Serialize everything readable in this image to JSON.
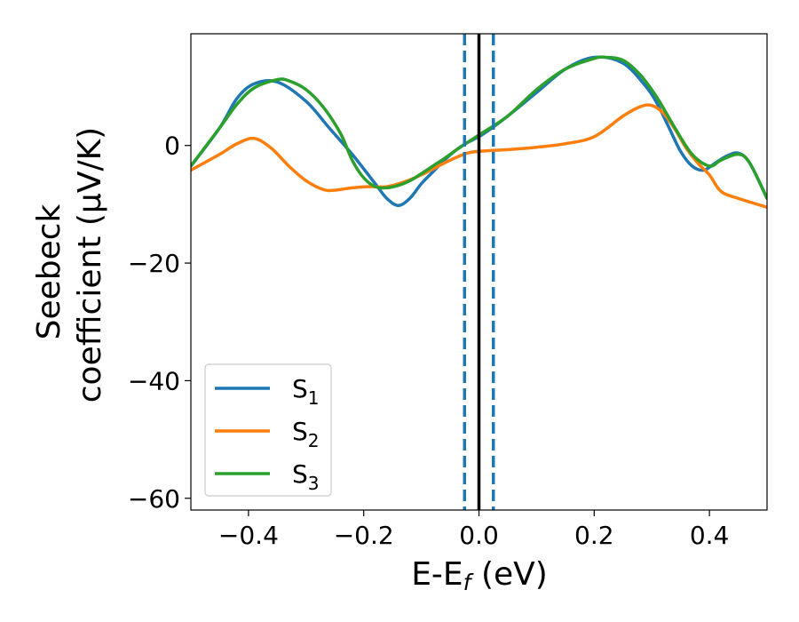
{
  "chart_data": {
    "type": "line",
    "title": "",
    "xlabel": "E-E",
    "xlabel_sub": "f",
    "xlabel_unit": "(eV)",
    "ylabel_line1": "Seebeck",
    "ylabel_line2": "coefficient",
    "ylabel_unit": "(μV/K)",
    "xlim": [
      -0.5,
      0.5
    ],
    "ylim": [
      -62,
      19
    ],
    "xticks": [
      -0.4,
      -0.2,
      0.0,
      0.2,
      0.4
    ],
    "xtick_labels": [
      "−0.4",
      "−0.2",
      "0.0",
      "0.2",
      "0.4"
    ],
    "yticks": [
      0,
      -20,
      -40,
      -60
    ],
    "ytick_labels": [
      "0",
      "−20",
      "−40",
      "−60"
    ],
    "grid": false,
    "legend_position": "bottom-left",
    "series": [
      {
        "name": "S",
        "sub": "1",
        "color": "#1f77b4",
        "x": [
          -0.5,
          -0.45,
          -0.42,
          -0.39,
          -0.35,
          -0.3,
          -0.26,
          -0.22,
          -0.18,
          -0.16,
          -0.14,
          -0.12,
          -0.1,
          -0.08,
          -0.06,
          -0.04,
          -0.02,
          0.0,
          0.02,
          0.05,
          0.1,
          0.15,
          0.2,
          0.25,
          0.29,
          0.31,
          0.33,
          0.35,
          0.37,
          0.39,
          0.41,
          0.43,
          0.45,
          0.47,
          0.5
        ],
        "values": [
          -3.5,
          3,
          8,
          10.5,
          10.8,
          7.5,
          3,
          -1.5,
          -6.5,
          -9,
          -10.2,
          -9,
          -6.5,
          -4.5,
          -2.5,
          -0.8,
          0.5,
          1.5,
          2.8,
          5,
          9,
          13,
          15,
          14,
          10,
          7,
          3,
          -1,
          -3.5,
          -4.2,
          -3,
          -1.8,
          -1.3,
          -3,
          -9
        ]
      },
      {
        "name": "S",
        "sub": "2",
        "color": "#ff7f0e",
        "x": [
          -0.5,
          -0.45,
          -0.42,
          -0.39,
          -0.36,
          -0.33,
          -0.3,
          -0.27,
          -0.25,
          -0.22,
          -0.19,
          -0.16,
          -0.13,
          -0.1,
          -0.08,
          -0.05,
          -0.02,
          0.0,
          0.05,
          0.1,
          0.15,
          0.2,
          0.25,
          0.28,
          0.3,
          0.32,
          0.34,
          0.36,
          0.38,
          0.4,
          0.42,
          0.45,
          0.5
        ],
        "values": [
          -4.2,
          -1.5,
          0.3,
          1.2,
          -0.5,
          -3.5,
          -6,
          -7.5,
          -7.6,
          -7.2,
          -7.0,
          -7.0,
          -6.2,
          -5,
          -4,
          -2.5,
          -1.3,
          -1,
          -0.7,
          -0.3,
          0.3,
          1.5,
          5,
          6.6,
          6.8,
          5.5,
          2.8,
          -0.5,
          -3,
          -5,
          -7.8,
          -9,
          -10.5
        ]
      },
      {
        "name": "S",
        "sub": "3",
        "color": "#2ca02c",
        "x": [
          -0.5,
          -0.45,
          -0.42,
          -0.39,
          -0.35,
          -0.33,
          -0.3,
          -0.27,
          -0.24,
          -0.22,
          -0.2,
          -0.18,
          -0.16,
          -0.14,
          -0.12,
          -0.1,
          -0.08,
          -0.06,
          -0.04,
          -0.02,
          0.0,
          0.05,
          0.1,
          0.15,
          0.2,
          0.22,
          0.25,
          0.28,
          0.31,
          0.34,
          0.37,
          0.4,
          0.42,
          0.45,
          0.47,
          0.5
        ],
        "values": [
          -3.5,
          3,
          7,
          9.8,
          11.2,
          11,
          9.5,
          6.5,
          2,
          -2.5,
          -5.5,
          -7,
          -7.2,
          -6.8,
          -6,
          -4.8,
          -3.5,
          -2.2,
          -0.8,
          0.5,
          1.8,
          5,
          9.5,
          13,
          14.8,
          15,
          14.5,
          12,
          8,
          3,
          -1.5,
          -3.5,
          -2.5,
          -1.5,
          -3,
          -9
        ]
      }
    ],
    "vlines": [
      {
        "name": "fermi-level",
        "x": 0.0,
        "color": "#000000",
        "style": "solid"
      },
      {
        "name": "window-left",
        "x": -0.025,
        "color": "#1f77b4",
        "style": "dashed"
      },
      {
        "name": "window-right",
        "x": 0.025,
        "color": "#1f77b4",
        "style": "dashed"
      }
    ]
  }
}
